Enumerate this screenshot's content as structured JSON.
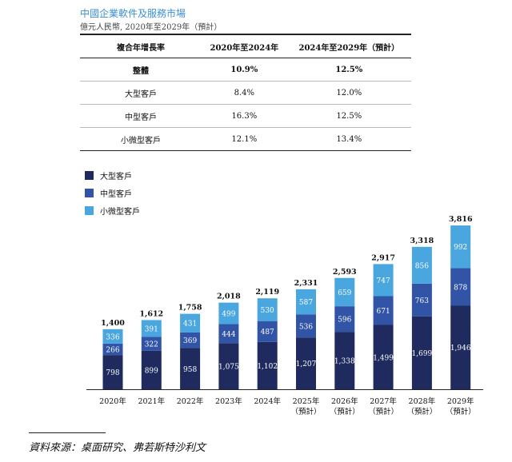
{
  "title": "中國企業軟件及服務市場",
  "subtitle": "億元人民幣, 2020年至2029年（預計）",
  "table": {
    "headers": [
      "複合年增長率",
      "2020年至2024年",
      "2024年至2029年（預計）"
    ],
    "rows": [
      {
        "label": "整體",
        "c1": "10.9%",
        "c2": "12.5%"
      },
      {
        "label": "大型客戶",
        "c1": "8.4%",
        "c2": "12.0%"
      },
      {
        "label": "中型客戶",
        "c1": "16.3%",
        "c2": "12.5%"
      },
      {
        "label": "小微型客戶",
        "c1": "12.1%",
        "c2": "13.4%"
      }
    ]
  },
  "colors": {
    "large": "#1f2b5e",
    "medium": "#3154a6",
    "small": "#4aa6de",
    "title": "#3a8fd6"
  },
  "chart_data": {
    "type": "bar",
    "stacked": true,
    "categories": [
      "2020年",
      "2021年",
      "2022年",
      "2023年",
      "2024年",
      "2025年",
      "2026年",
      "2027年",
      "2028年",
      "2029年"
    ],
    "category_sublabels": [
      "",
      "",
      "",
      "",
      "",
      "（預計）",
      "（預計）",
      "（預計）",
      "（預計）",
      "（預計）"
    ],
    "series": [
      {
        "name": "大型客戶",
        "values": [
          798,
          899,
          958,
          1075,
          1102,
          1207,
          1338,
          1499,
          1699,
          1946
        ]
      },
      {
        "name": "中型客戶",
        "values": [
          266,
          322,
          369,
          444,
          487,
          536,
          596,
          671,
          763,
          878
        ]
      },
      {
        "name": "小微型客戶",
        "values": [
          336,
          391,
          431,
          499,
          530,
          587,
          659,
          747,
          856,
          992
        ]
      }
    ],
    "value_labels": [
      [
        "798",
        "899",
        "958",
        "1,075",
        "1,102",
        "1,207",
        "1,338",
        "1,499",
        "1,699",
        "1,946"
      ],
      [
        "266",
        "322",
        "369",
        "444",
        "487",
        "536",
        "596",
        "671",
        "763",
        "878"
      ],
      [
        "336",
        "391",
        "431",
        "499",
        "530",
        "587",
        "659",
        "747",
        "856",
        "992"
      ]
    ],
    "totals": [
      "1,400",
      "1,612",
      "1,758",
      "2,018",
      "2,119",
      "2,331",
      "2,593",
      "2,917",
      "3,318",
      "3,816"
    ],
    "legend_position": "top-left",
    "grid": false
  },
  "source": "資料來源：桌面研究、弗若斯特沙利文"
}
